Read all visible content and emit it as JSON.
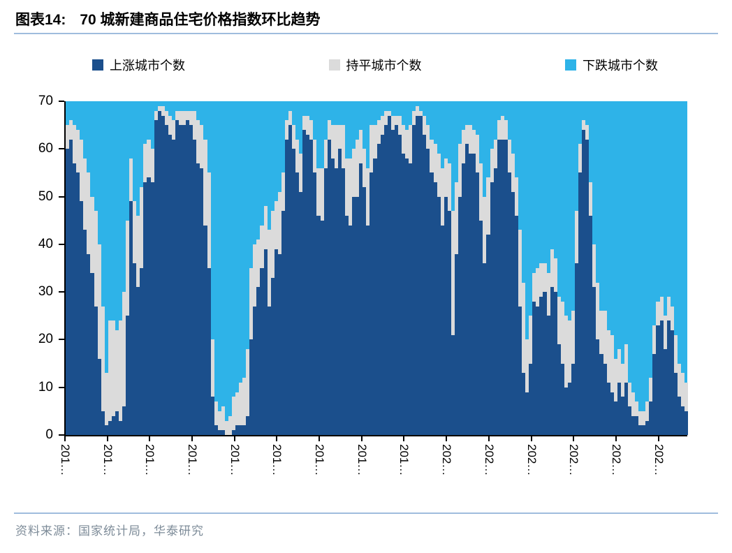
{
  "header": {
    "figure_label": "图表14:",
    "title": "70 城新建商品住宅价格指数环比趋势"
  },
  "legend": [
    {
      "label": "上涨城市个数",
      "color": "#1B4F8C"
    },
    {
      "label": "持平城市个数",
      "color": "#DBDBDB"
    },
    {
      "label": "下跌城市个数",
      "color": "#2EB3E8"
    }
  ],
  "footer": {
    "source": "资料来源：国家统计局，华泰研究"
  },
  "theme": {
    "rule_color": "#9FBCDD",
    "source_text_color": "#7E8C99",
    "axis_color": "#000000"
  },
  "chart_data": {
    "type": "bar",
    "stacked": true,
    "title": "70 城新建商品住宅价格指数环比趋势",
    "xlabel": "",
    "ylabel": "",
    "ylim": [
      0,
      70
    ],
    "y_ticks": [
      0,
      10,
      20,
      30,
      40,
      50,
      60,
      70
    ],
    "total_per_month": 70,
    "frequency": "monthly",
    "start_month": "2011-01",
    "end_month": "2025-08",
    "x_tick_years": [
      "2011",
      "2012",
      "2013",
      "2014",
      "2015",
      "2016",
      "2017",
      "2018",
      "2019",
      "2020",
      "2021",
      "2022",
      "2023",
      "2024",
      "2025"
    ],
    "x_tick_display_suffix": "…",
    "falling_rule": "下跌城市个数 = 70 - 上涨城市个数 - 持平城市个数",
    "series": [
      {
        "name": "上涨城市个数",
        "color": "#1B4F8C",
        "values": [
          60,
          62,
          57,
          55,
          49,
          43,
          38,
          34,
          27,
          16,
          5,
          2,
          3,
          4,
          5,
          3,
          6,
          25,
          49,
          36,
          31,
          35,
          53,
          54,
          53,
          66,
          68,
          67,
          65,
          63,
          62,
          66,
          65,
          65,
          66,
          65,
          62,
          57,
          56,
          44,
          35,
          8,
          2,
          1,
          1,
          0,
          0,
          1,
          2,
          2,
          2,
          4,
          20,
          27,
          31,
          35,
          39,
          27,
          33,
          39,
          38,
          47,
          62,
          65,
          60,
          55,
          51,
          64,
          63,
          62,
          55,
          46,
          45,
          56,
          62,
          58,
          56,
          60,
          56,
          46,
          44,
          50,
          50,
          57,
          52,
          44,
          55,
          58,
          61,
          63,
          65,
          67,
          64,
          65,
          63,
          59,
          58,
          57,
          65,
          67,
          67,
          63,
          60,
          55,
          53,
          50,
          44,
          50,
          47,
          21,
          38,
          50,
          57,
          61,
          59,
          59,
          55,
          45,
          36,
          42,
          53,
          56,
          62,
          62,
          62,
          55,
          51,
          46,
          27,
          13,
          9,
          15,
          28,
          27,
          29,
          30,
          25,
          31,
          30,
          19,
          15,
          10,
          11,
          15,
          36,
          55,
          64,
          62,
          46,
          31,
          20,
          17,
          15,
          11,
          9,
          7,
          11,
          8,
          11,
          6,
          4,
          4,
          2,
          2,
          3,
          7,
          17,
          23,
          24,
          18,
          24,
          22,
          13,
          8,
          6,
          5
        ]
      },
      {
        "name": "持平城市个数",
        "color": "#DBDBDB",
        "values": [
          5,
          4,
          8,
          9,
          13,
          15,
          17,
          16,
          20,
          24,
          22,
          11,
          21,
          20,
          17,
          21,
          24,
          20,
          9,
          13,
          15,
          17,
          8,
          8,
          7,
          2,
          1,
          2,
          3,
          4,
          4,
          2,
          3,
          3,
          2,
          3,
          6,
          9,
          9,
          18,
          20,
          12,
          5,
          4,
          5,
          3,
          4,
          7,
          7,
          9,
          10,
          14,
          15,
          13,
          10,
          9,
          9,
          16,
          14,
          10,
          13,
          8,
          4,
          3,
          5,
          7,
          8,
          3,
          4,
          4,
          7,
          10,
          11,
          6,
          4,
          7,
          9,
          5,
          9,
          12,
          14,
          10,
          12,
          7,
          8,
          12,
          10,
          7,
          5,
          4,
          3,
          1,
          3,
          2,
          4,
          6,
          6,
          8,
          3,
          2,
          1,
          4,
          5,
          7,
          8,
          9,
          12,
          8,
          10,
          26,
          15,
          11,
          7,
          4,
          6,
          5,
          8,
          12,
          14,
          12,
          7,
          6,
          4,
          5,
          4,
          7,
          8,
          8,
          16,
          19,
          11,
          10,
          6,
          8,
          7,
          6,
          9,
          8,
          7,
          10,
          13,
          15,
          13,
          11,
          11,
          6,
          2,
          3,
          7,
          9,
          12,
          9,
          11,
          11,
          12,
          9,
          7,
          7,
          8,
          5,
          5,
          3,
          3,
          3,
          4,
          5,
          6,
          5,
          5,
          7,
          5,
          5,
          8,
          7,
          7,
          6
        ]
      },
      {
        "name": "下跌城市个数",
        "color": "#2EB3E8",
        "values_rule": "70 - rising - flat (renders as plot background)"
      }
    ],
    "legend_position": "top"
  }
}
